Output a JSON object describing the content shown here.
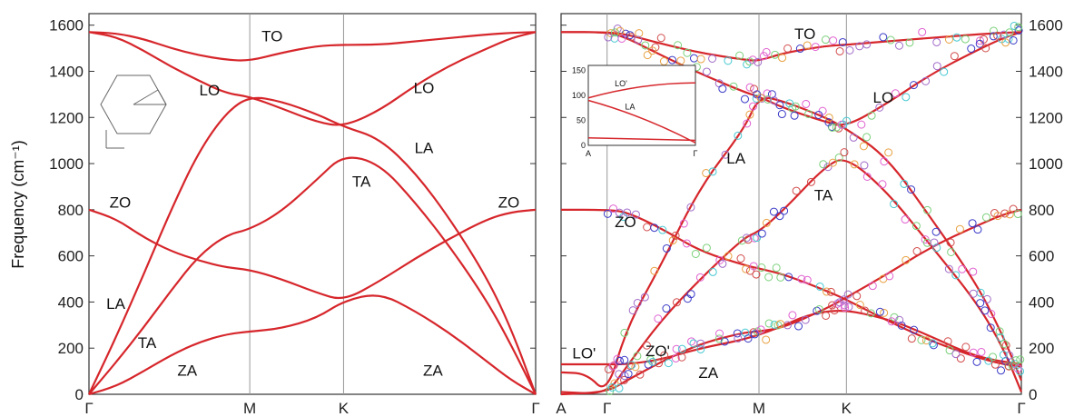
{
  "colors": {
    "curve": "#d6262b",
    "frame": "#333333",
    "symmetry_line": "#999999",
    "marker_colors": [
      "#3a3ac8",
      "#46c8d2",
      "#a06ac8",
      "#e8a040",
      "#7ad07a",
      "#d24a4a",
      "#e060d0"
    ]
  },
  "chart_data": [
    {
      "type": "line",
      "panel": "left",
      "ylabel": "Frequency (cm⁻¹)",
      "ylim": [
        0,
        1650
      ],
      "yticks": [
        0,
        200,
        400,
        600,
        800,
        1000,
        1200,
        1400,
        1600
      ],
      "x_points": [
        "Γ",
        "M",
        "K",
        "Γ"
      ],
      "series": [
        {
          "values": [
            [
              0,
              0
            ],
            [
              0.08,
              250
            ],
            [
              0.16,
              520
            ],
            [
              0.24,
              800
            ],
            [
              0.32,
              1050
            ],
            [
              0.4,
              1220
            ],
            [
              0.47,
              1293
            ],
            [
              0.54,
              1270
            ],
            [
              0.62,
              1215
            ],
            [
              0.68,
              1160
            ],
            [
              0.74,
              1110
            ],
            [
              0.8,
              960
            ],
            [
              0.86,
              750
            ],
            [
              0.92,
              500
            ],
            [
              0.96,
              280
            ],
            [
              1.0,
              0
            ]
          ]
        },
        {
          "values": [
            [
              0,
              0
            ],
            [
              0.08,
              140
            ],
            [
              0.16,
              290
            ],
            [
              0.24,
              450
            ],
            [
              0.32,
              600
            ],
            [
              0.4,
              690
            ],
            [
              0.47,
              715
            ],
            [
              0.54,
              790
            ],
            [
              0.62,
              930
            ],
            [
              0.68,
              1040
            ],
            [
              0.74,
              1000
            ],
            [
              0.8,
              830
            ],
            [
              0.86,
              630
            ],
            [
              0.92,
              400
            ],
            [
              0.96,
              210
            ],
            [
              1.0,
              0
            ]
          ]
        },
        {
          "values": [
            [
              0,
              0
            ],
            [
              0.08,
              35
            ],
            [
              0.16,
              100
            ],
            [
              0.24,
              170
            ],
            [
              0.32,
              225
            ],
            [
              0.4,
              260
            ],
            [
              0.47,
              272
            ],
            [
              0.54,
              285
            ],
            [
              0.62,
              330
            ],
            [
              0.68,
              405
            ],
            [
              0.74,
              440
            ],
            [
              0.8,
              360
            ],
            [
              0.86,
              260
            ],
            [
              0.92,
              140
            ],
            [
              0.96,
              60
            ],
            [
              1.0,
              0
            ]
          ]
        },
        {
          "values": [
            [
              0,
              800
            ],
            [
              0.08,
              760
            ],
            [
              0.16,
              680
            ],
            [
              0.24,
              620
            ],
            [
              0.32,
              580
            ],
            [
              0.4,
              550
            ],
            [
              0.47,
              540
            ],
            [
              0.54,
              500
            ],
            [
              0.62,
              440
            ],
            [
              0.68,
              405
            ],
            [
              0.74,
              490
            ],
            [
              0.8,
              590
            ],
            [
              0.86,
              680
            ],
            [
              0.92,
              760
            ],
            [
              0.96,
              790
            ],
            [
              1.0,
              800
            ]
          ]
        },
        {
          "values": [
            [
              0,
              1570
            ],
            [
              0.08,
              1565
            ],
            [
              0.16,
              1540
            ],
            [
              0.24,
              1500
            ],
            [
              0.32,
              1470
            ],
            [
              0.4,
              1450
            ],
            [
              0.47,
              1445
            ],
            [
              0.54,
              1480
            ],
            [
              0.62,
              1510
            ],
            [
              0.68,
              1515
            ],
            [
              0.74,
              1515
            ],
            [
              0.8,
              1530
            ],
            [
              0.86,
              1545
            ],
            [
              0.92,
              1560
            ],
            [
              0.96,
              1567
            ],
            [
              1.0,
              1570
            ]
          ]
        },
        {
          "values": [
            [
              0,
              1570
            ],
            [
              0.08,
              1550
            ],
            [
              0.16,
              1490
            ],
            [
              0.24,
              1420
            ],
            [
              0.32,
              1360
            ],
            [
              0.4,
              1305
            ],
            [
              0.47,
              1290
            ],
            [
              0.54,
              1240
            ],
            [
              0.62,
              1180
            ],
            [
              0.68,
              1160
            ],
            [
              0.74,
              1230
            ],
            [
              0.8,
              1340
            ],
            [
              0.86,
              1430
            ],
            [
              0.92,
              1500
            ],
            [
              0.96,
              1545
            ],
            [
              1.0,
              1570
            ]
          ]
        }
      ],
      "branch_labels": [
        "TO",
        "LO",
        "LO",
        "LA",
        "TA",
        "ZO",
        "ZO",
        "LA",
        "TA",
        "ZA",
        "ZA"
      ]
    },
    {
      "type": "scatter",
      "panel": "right",
      "ylim": [
        0,
        1650
      ],
      "yticks": [
        0,
        200,
        400,
        600,
        800,
        1000,
        1200,
        1400,
        1600
      ],
      "x_points": [
        "A",
        "Γ",
        "M",
        "K",
        "Γ"
      ],
      "series": [
        {
          "values": [
            [
              0,
              95
            ],
            [
              0.05,
              90
            ],
            [
              0.09,
              0
            ],
            [
              0.13,
              290
            ],
            [
              0.2,
              560
            ],
            [
              0.28,
              900
            ],
            [
              0.37,
              1150
            ],
            [
              0.4,
              1294
            ],
            [
              0.46,
              1270
            ],
            [
              0.56,
              1200
            ],
            [
              0.61,
              1150
            ],
            [
              0.7,
              1030
            ],
            [
              0.8,
              760
            ],
            [
              0.9,
              480
            ],
            [
              0.96,
              250
            ],
            [
              1.0,
              60
            ]
          ]
        },
        {
          "values": [
            [
              0,
              10
            ],
            [
              0.09,
              0
            ],
            [
              0.13,
              120
            ],
            [
              0.2,
              320
            ],
            [
              0.28,
              500
            ],
            [
              0.37,
              680
            ],
            [
              0.4,
              705
            ],
            [
              0.46,
              800
            ],
            [
              0.56,
              990
            ],
            [
              0.61,
              1030
            ],
            [
              0.7,
              880
            ],
            [
              0.8,
              640
            ],
            [
              0.9,
              400
            ],
            [
              0.96,
              200
            ],
            [
              1.0,
              10
            ]
          ]
        },
        {
          "values": [
            [
              0,
              0
            ],
            [
              0.09,
              10
            ],
            [
              0.13,
              60
            ],
            [
              0.2,
              140
            ],
            [
              0.28,
              220
            ],
            [
              0.37,
              268
            ],
            [
              0.4,
              272
            ],
            [
              0.46,
              290
            ],
            [
              0.56,
              370
            ],
            [
              0.61,
              420
            ],
            [
              0.7,
              520
            ],
            [
              0.8,
              640
            ],
            [
              0.9,
              730
            ],
            [
              0.96,
              780
            ],
            [
              1.0,
              800
            ]
          ]
        },
        {
          "values": [
            [
              0,
              800
            ],
            [
              0.09,
              800
            ],
            [
              0.13,
              790
            ],
            [
              0.2,
              720
            ],
            [
              0.28,
              620
            ],
            [
              0.37,
              560
            ],
            [
              0.4,
              545
            ],
            [
              0.46,
              520
            ],
            [
              0.56,
              450
            ],
            [
              0.61,
              410
            ],
            [
              0.7,
              320
            ],
            [
              0.8,
              230
            ],
            [
              0.9,
              160
            ],
            [
              0.96,
              130
            ],
            [
              1.0,
              120
            ]
          ]
        },
        {
          "values": [
            [
              0,
              1570
            ],
            [
              0.09,
              1570
            ],
            [
              0.13,
              1560
            ],
            [
              0.2,
              1520
            ],
            [
              0.28,
              1480
            ],
            [
              0.37,
              1450
            ],
            [
              0.4,
              1445
            ],
            [
              0.46,
              1480
            ],
            [
              0.56,
              1510
            ],
            [
              0.61,
              1515
            ],
            [
              0.7,
              1530
            ],
            [
              0.8,
              1545
            ],
            [
              0.9,
              1560
            ],
            [
              0.96,
              1567
            ],
            [
              1.0,
              1570
            ]
          ]
        },
        {
          "values": [
            [
              0,
              1570
            ],
            [
              0.09,
              1570
            ],
            [
              0.13,
              1545
            ],
            [
              0.2,
              1470
            ],
            [
              0.28,
              1390
            ],
            [
              0.37,
              1310
            ],
            [
              0.4,
              1290
            ],
            [
              0.46,
              1240
            ],
            [
              0.56,
              1180
            ],
            [
              0.61,
              1160
            ],
            [
              0.7,
              1260
            ],
            [
              0.8,
              1390
            ],
            [
              0.9,
              1490
            ],
            [
              0.96,
              1545
            ],
            [
              1.0,
              1570
            ]
          ]
        },
        {
          "values": [
            [
              0,
              130
            ],
            [
              0.05,
              130
            ],
            [
              0.09,
              130
            ],
            [
              0.13,
              130
            ],
            [
              0.2,
              150
            ],
            [
              0.28,
              200
            ],
            [
              0.4,
              250
            ],
            [
              0.56,
              380
            ],
            [
              0.7,
              330
            ],
            [
              0.8,
              250
            ],
            [
              0.9,
              160
            ],
            [
              1.0,
              130
            ]
          ]
        }
      ],
      "branch_labels": [
        "TO",
        "LO",
        "LA",
        "TA",
        "ZO",
        "LO'",
        "ZO'",
        "ZA"
      ],
      "inset": {
        "yticks": [
          0,
          50,
          100,
          150
        ],
        "x_points": [
          "A",
          "Γ"
        ],
        "branch_labels": [
          "LO'",
          "LA"
        ]
      }
    }
  ]
}
